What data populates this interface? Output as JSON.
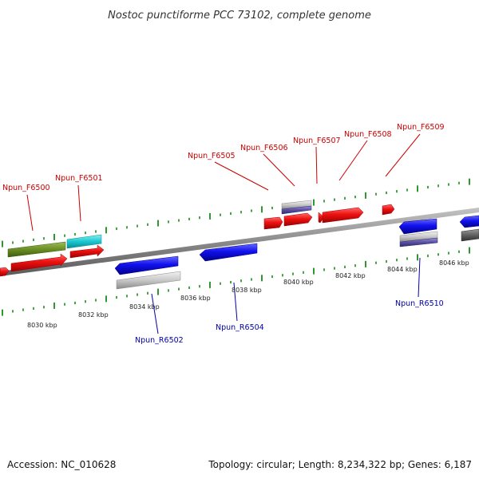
{
  "title": "Nostoc punctiforme PCC 73102, complete genome",
  "footer": {
    "accession": "Accession: NC_010628",
    "topology": "Topology: circular; Length: 8,234,322 bp; Genes: 6,187"
  },
  "colors": {
    "background": "#ffffff",
    "backbone": "#8a8a8a",
    "tick_marks": "#1a8a1a",
    "forward_gene": "#ee1111",
    "reverse_gene": "#1111ee",
    "forward_label": "#cc0000",
    "reverse_label": "#0000aa",
    "olive_gene": "#6b8e23",
    "cyan_gene": "#1ac8d0",
    "silver_gene": "#c8c8c8",
    "purple_gene": "#5a50a0",
    "dark_gray_gene": "#606060"
  },
  "scale_labels": [
    "8030 kbp",
    "8032 kbp",
    "8034 kbp",
    "8036 kbp",
    "8038 kbp",
    "8040 kbp",
    "8042 kbp",
    "8044 kbp",
    "8046 kbp"
  ],
  "forward_genes": [
    "Npun_F6500",
    "Npun_F6501",
    "Npun_F6505",
    "Npun_F6506",
    "Npun_F6507",
    "Npun_F6508",
    "Npun_F6509"
  ],
  "reverse_genes": [
    "Npun_R6502",
    "Npun_R6504",
    "Npun_R6510"
  ]
}
